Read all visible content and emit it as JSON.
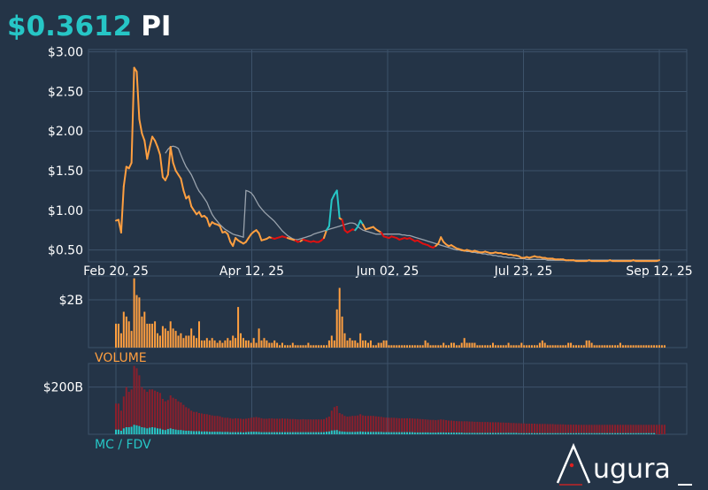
{
  "header": {
    "price": "$0.3612",
    "ticker": "PI"
  },
  "colors": {
    "background": "#243447",
    "grid": "#3d526a",
    "price_line": "#ff9f40",
    "price_line_down": "#e01010",
    "price_line_spike": "#26c6c6",
    "moving_average": "#9aa3ad",
    "volume_bars": "#ff9f40",
    "market_cap_bars": "#8a1f2c",
    "fdv_bars": "#26c6c6",
    "label_orange": "#ff9f40",
    "label_teal": "#26c6c6"
  },
  "brand": {
    "logo_text": "ugura"
  },
  "chart_data": [
    {
      "type": "line",
      "panel": "price",
      "x_ticks": [
        "Feb 20, 25",
        "Apr 12, 25",
        "Jun 02, 25",
        "Jul 23, 25",
        "Sep 12, 25"
      ],
      "y_ticks": [
        "$3.00",
        "$2.50",
        "$2.00",
        "$1.50",
        "$1.00",
        "$0.50"
      ],
      "ylim": [
        0.35,
        3.03
      ],
      "x_range_days": [
        0,
        204
      ],
      "series": [
        {
          "values": [
            0.87,
            0.88,
            0.72,
            1.3,
            1.55,
            1.53,
            1.6,
            2.8,
            2.75,
            2.15,
            1.97,
            1.88,
            1.65,
            1.8,
            1.93,
            1.88,
            1.8,
            1.7,
            1.42,
            1.38,
            1.45,
            1.8,
            1.6,
            1.5,
            1.45,
            1.4,
            1.25,
            1.15,
            1.18,
            1.05,
            1.0,
            0.95,
            0.98,
            0.92,
            0.93,
            0.9,
            0.8,
            0.85,
            0.83,
            0.82,
            0.8,
            0.72,
            0.73,
            0.7,
            0.6,
            0.55,
            0.65,
            0.62,
            0.6,
            0.58,
            0.6,
            0.65,
            0.7,
            0.73,
            0.75,
            0.71,
            0.62,
            0.63,
            0.64,
            0.66,
            0.65,
            0.64,
            0.65,
            0.66,
            0.67,
            0.66,
            0.65,
            0.64,
            0.63,
            0.62,
            0.6,
            0.61,
            0.63,
            0.62,
            0.61,
            0.6,
            0.61,
            0.6,
            0.6,
            0.62,
            0.65,
            0.75,
            0.8,
            1.13,
            1.2,
            1.25,
            0.9,
            0.88,
            0.75,
            0.72,
            0.74,
            0.76,
            0.75,
            0.79,
            0.87,
            0.82,
            0.76,
            0.77,
            0.78,
            0.79,
            0.76,
            0.74,
            0.72,
            0.67,
            0.66,
            0.65,
            0.67,
            0.66,
            0.65,
            0.63,
            0.64,
            0.65,
            0.64,
            0.65,
            0.63,
            0.61,
            0.62,
            0.6,
            0.58,
            0.57,
            0.56,
            0.54,
            0.53,
            0.55,
            0.58,
            0.66,
            0.6,
            0.57,
            0.55,
            0.56,
            0.54,
            0.52,
            0.51,
            0.5,
            0.49,
            0.5,
            0.49,
            0.48,
            0.49,
            0.48,
            0.47,
            0.47,
            0.48,
            0.47,
            0.46,
            0.46,
            0.47,
            0.46,
            0.46,
            0.45,
            0.45,
            0.44,
            0.44,
            0.43,
            0.43,
            0.42,
            0.4,
            0.4,
            0.41,
            0.4,
            0.41,
            0.42,
            0.41,
            0.41,
            0.4,
            0.4,
            0.39,
            0.39,
            0.39,
            0.38,
            0.38,
            0.38,
            0.38,
            0.37,
            0.37,
            0.37,
            0.37,
            0.36,
            0.36,
            0.36,
            0.36,
            0.36,
            0.37,
            0.36,
            0.36,
            0.36,
            0.36,
            0.36,
            0.36,
            0.36,
            0.37,
            0.36,
            0.36,
            0.36,
            0.36,
            0.36,
            0.36,
            0.36,
            0.36,
            0.37,
            0.36,
            0.36,
            0.36,
            0.36,
            0.36,
            0.36,
            0.36,
            0.36,
            0.36,
            0.37
          ]
        },
        {
          "values": [
            null,
            null,
            null,
            null,
            null,
            null,
            null,
            null,
            null,
            null,
            null,
            null,
            null,
            null,
            null,
            null,
            null,
            null,
            null,
            1.72,
            1.77,
            1.8,
            1.81,
            1.8,
            1.78,
            1.7,
            1.62,
            1.55,
            1.5,
            1.45,
            1.38,
            1.3,
            1.24,
            1.2,
            1.15,
            1.1,
            1.02,
            0.95,
            0.9,
            0.86,
            0.82,
            0.79,
            0.76,
            0.74,
            0.72,
            0.7,
            0.69,
            0.68,
            0.67,
            0.66,
            1.25,
            1.24,
            1.22,
            1.18,
            1.12,
            1.06,
            1.02,
            0.98,
            0.95,
            0.92,
            0.89,
            0.86,
            0.82,
            0.78,
            0.74,
            0.71,
            0.68,
            0.66,
            0.64,
            0.63,
            0.63,
            0.64,
            0.65,
            0.66,
            0.67,
            0.68,
            0.7,
            0.71,
            0.72,
            0.73,
            0.74,
            0.75,
            0.76,
            0.77,
            0.78,
            0.79,
            0.8,
            0.81,
            0.82,
            0.83,
            0.84,
            0.84,
            0.83,
            0.8,
            0.77,
            0.75,
            0.74,
            0.73,
            0.72,
            0.71,
            0.7,
            0.7,
            0.7,
            0.7,
            0.7,
            0.7,
            0.7,
            0.7,
            0.7,
            0.7,
            0.69,
            0.69,
            0.68,
            0.68,
            0.67,
            0.66,
            0.65,
            0.64,
            0.63,
            0.62,
            0.61,
            0.6,
            0.59,
            0.58,
            0.57,
            0.56,
            0.55,
            0.54,
            0.53,
            0.52,
            0.51,
            0.5,
            0.5,
            0.49,
            0.49,
            0.48,
            0.48,
            0.47,
            0.47,
            0.46,
            0.46,
            0.45,
            0.45,
            0.44,
            0.44,
            0.43,
            0.43,
            0.42,
            0.42,
            0.41,
            0.41,
            0.4,
            0.4,
            0.4,
            0.39,
            0.39,
            0.39,
            0.39,
            0.38,
            0.38,
            0.38,
            0.38,
            0.38,
            0.38,
            0.38,
            0.38,
            0.37,
            0.37,
            0.37,
            0.37,
            0.37,
            0.37,
            0.37,
            0.37,
            0.37,
            0.37,
            0.37,
            0.37,
            0.37,
            0.37,
            0.37,
            0.37,
            0.37,
            0.37,
            0.37,
            0.37,
            0.37,
            0.37,
            0.37,
            0.37,
            0.37,
            0.37,
            0.37,
            0.37,
            0.37,
            0.37,
            0.37,
            0.37,
            0.37,
            0.37,
            0.37,
            0.37,
            0.37,
            0.37,
            0.37,
            0.37,
            0.37,
            0.37,
            0.37,
            0.37
          ]
        }
      ]
    },
    {
      "type": "bar",
      "panel": "volume",
      "label": "VOLUME",
      "y_ticks": [
        "$2B"
      ],
      "ylim": [
        0,
        3.0
      ],
      "values": [
        1.0,
        1.0,
        0.6,
        1.5,
        1.3,
        1.1,
        0.7,
        2.9,
        2.2,
        2.1,
        1.3,
        1.5,
        1.0,
        1.0,
        1.0,
        1.1,
        0.6,
        0.5,
        0.9,
        0.8,
        0.7,
        1.1,
        0.8,
        0.7,
        0.5,
        0.6,
        0.4,
        0.5,
        0.5,
        0.8,
        0.5,
        0.4,
        1.1,
        0.3,
        0.3,
        0.4,
        0.3,
        0.4,
        0.3,
        0.2,
        0.3,
        0.2,
        0.3,
        0.4,
        0.3,
        0.5,
        0.4,
        1.7,
        0.6,
        0.4,
        0.3,
        0.3,
        0.2,
        0.4,
        0.2,
        0.8,
        0.3,
        0.4,
        0.3,
        0.2,
        0.2,
        0.3,
        0.2,
        0.1,
        0.2,
        0.1,
        0.1,
        0.1,
        0.2,
        0.1,
        0.1,
        0.1,
        0.1,
        0.1,
        0.2,
        0.1,
        0.1,
        0.1,
        0.1,
        0.1,
        0.1,
        0.1,
        0.3,
        0.5,
        0.3,
        1.6,
        2.5,
        1.3,
        0.6,
        0.3,
        0.4,
        0.3,
        0.3,
        0.2,
        0.6,
        0.3,
        0.3,
        0.2,
        0.3,
        0.1,
        0.1,
        0.2,
        0.2,
        0.3,
        0.3,
        0.1,
        0.1,
        0.1,
        0.1,
        0.1,
        0.1,
        0.1,
        0.1,
        0.1,
        0.1,
        0.1,
        0.1,
        0.1,
        0.1,
        0.3,
        0.2,
        0.1,
        0.1,
        0.1,
        0.1,
        0.1,
        0.2,
        0.1,
        0.1,
        0.2,
        0.2,
        0.1,
        0.1,
        0.2,
        0.4,
        0.2,
        0.2,
        0.2,
        0.2,
        0.1,
        0.1,
        0.1,
        0.1,
        0.1,
        0.1,
        0.2,
        0.1,
        0.1,
        0.1,
        0.1,
        0.1,
        0.2,
        0.1,
        0.1,
        0.1,
        0.1,
        0.2,
        0.1,
        0.1,
        0.1,
        0.1,
        0.1,
        0.1,
        0.2,
        0.3,
        0.2,
        0.1,
        0.1,
        0.1,
        0.1,
        0.1,
        0.1,
        0.1,
        0.1,
        0.2,
        0.2,
        0.1,
        0.1,
        0.1,
        0.1,
        0.1,
        0.3,
        0.3,
        0.2,
        0.1,
        0.1,
        0.1,
        0.1,
        0.1,
        0.1,
        0.1,
        0.1,
        0.1,
        0.1,
        0.2,
        0.1,
        0.1,
        0.1,
        0.1,
        0.1,
        0.1,
        0.1,
        0.1,
        0.1,
        0.1,
        0.1,
        0.1,
        0.1,
        0.1,
        0.1,
        0.1,
        0.1
      ]
    },
    {
      "type": "bar",
      "panel": "market-cap",
      "label": "MC / FDV",
      "y_ticks": [
        "$200B"
      ],
      "ylim": [
        0,
        300
      ],
      "series": [
        {
          "values": [
            20,
            20,
            15,
            25,
            30,
            30,
            32,
            40,
            38,
            35,
            30,
            28,
            25,
            28,
            30,
            28,
            25,
            24,
            20,
            18,
            22,
            25,
            22,
            20,
            18,
            18,
            16,
            15,
            15,
            14,
            13,
            13,
            13,
            12,
            12,
            12,
            11,
            11,
            11,
            11,
            11,
            10,
            10,
            10,
            9,
            9,
            9,
            9,
            9,
            8,
            9,
            10,
            11,
            11,
            11,
            10,
            9,
            9,
            9,
            9,
            9,
            9,
            9,
            9,
            9,
            9,
            9,
            9,
            9,
            9,
            9,
            9,
            9,
            9,
            9,
            9,
            9,
            9,
            9,
            9,
            9,
            11,
            12,
            16,
            17,
            18,
            13,
            12,
            11,
            10,
            10,
            10,
            10,
            11,
            12,
            11,
            10,
            10,
            10,
            10,
            10,
            10,
            10,
            9,
            9,
            9,
            9,
            9,
            9,
            9,
            9,
            9,
            9,
            9,
            9,
            8,
            8,
            8,
            8,
            8,
            8,
            7,
            7,
            7,
            8,
            8,
            8,
            7,
            7,
            7,
            7,
            7,
            7,
            7,
            6,
            6,
            6,
            6,
            6,
            6,
            6,
            6,
            6,
            6,
            6,
            6,
            6,
            6,
            6,
            6,
            6,
            6,
            6,
            6,
            6,
            5,
            5,
            5,
            5,
            5,
            5,
            5,
            5,
            5,
            5,
            5,
            5,
            5,
            5,
            5,
            5,
            5,
            5,
            5,
            5,
            5,
            5,
            5,
            5,
            5,
            5,
            5,
            5,
            5,
            5,
            5,
            5,
            5,
            5,
            5,
            5,
            5,
            5,
            5,
            5,
            5,
            5,
            5,
            5,
            5,
            5,
            5,
            5,
            5,
            5,
            5,
            5,
            5
          ]
        },
        {
          "values": [
            130,
            130,
            100,
            160,
            200,
            180,
            190,
            290,
            280,
            250,
            200,
            190,
            180,
            190,
            190,
            185,
            180,
            175,
            150,
            140,
            145,
            165,
            155,
            150,
            140,
            135,
            125,
            115,
            110,
            100,
            95,
            95,
            90,
            88,
            86,
            85,
            82,
            80,
            78,
            78,
            76,
            72,
            70,
            70,
            68,
            66,
            68,
            67,
            66,
            65,
            66,
            68,
            70,
            72,
            73,
            71,
            68,
            66,
            66,
            67,
            67,
            66,
            66,
            66,
            67,
            66,
            66,
            65,
            65,
            64,
            63,
            63,
            64,
            63,
            63,
            63,
            63,
            63,
            63,
            63,
            64,
            70,
            75,
            100,
            115,
            120,
            90,
            85,
            78,
            75,
            76,
            78,
            78,
            80,
            85,
            80,
            78,
            78,
            78,
            78,
            76,
            75,
            74,
            72,
            71,
            70,
            70,
            70,
            69,
            68,
            68,
            68,
            68,
            68,
            67,
            66,
            66,
            65,
            64,
            63,
            62,
            61,
            61,
            60,
            61,
            63,
            62,
            60,
            58,
            58,
            57,
            56,
            55,
            55,
            55,
            55,
            54,
            54,
            53,
            53,
            52,
            52,
            52,
            52,
            51,
            51,
            51,
            51,
            50,
            50,
            49,
            49,
            48,
            48,
            47,
            47,
            46,
            46,
            45,
            45,
            45,
            45,
            44,
            44,
            44,
            44,
            43,
            43,
            43,
            42,
            42,
            42,
            42,
            41,
            41,
            41,
            41,
            41,
            40,
            40,
            40,
            40,
            40,
            40,
            40,
            40,
            40,
            40,
            40,
            40,
            40,
            40,
            40,
            40,
            40,
            40,
            40,
            40,
            40,
            40,
            40,
            40,
            40,
            40,
            40,
            40,
            40,
            40,
            40,
            40,
            40,
            40
          ]
        }
      ]
    }
  ]
}
